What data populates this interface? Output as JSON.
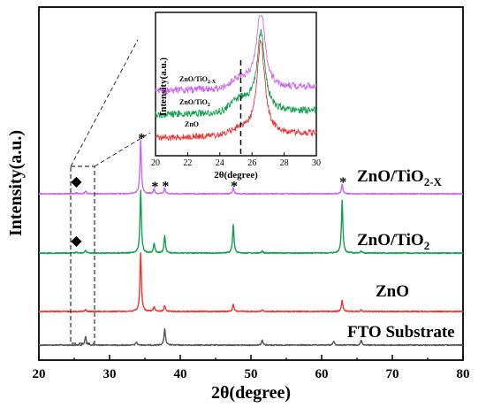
{
  "chart_data": {
    "type": "line",
    "x_axis": {
      "label": "2θ(degree)",
      "range": [
        20,
        80
      ],
      "ticks": [
        "20",
        "30",
        "40",
        "50",
        "60",
        "70",
        "80"
      ]
    },
    "y_axis": {
      "label": "Intensity(a.u.)",
      "ticks_shown": false
    },
    "grid": false,
    "series": [
      {
        "name": "FTO Substrate",
        "color": "#555555",
        "peaks": [
          [
            26.6,
            0.45
          ],
          [
            33.8,
            0.15
          ],
          [
            37.8,
            0.85
          ],
          [
            51.6,
            0.25
          ],
          [
            61.7,
            0.2
          ],
          [
            65.6,
            0.25
          ]
        ]
      },
      {
        "name": "ZnO",
        "color": "#ee3333",
        "peaks": [
          [
            26.6,
            0.08
          ],
          [
            34.4,
            3.0
          ],
          [
            36.3,
            0.25
          ],
          [
            37.8,
            0.3
          ],
          [
            47.5,
            0.35
          ],
          [
            51.6,
            0.08
          ],
          [
            62.9,
            0.6
          ],
          [
            65.6,
            0.08
          ]
        ]
      },
      {
        "name": "ZnO/TiO",
        "name_subscript": "2",
        "color": "#13a050",
        "peaks": [
          [
            25.3,
            0.05
          ],
          [
            26.6,
            0.15
          ],
          [
            34.4,
            3.2
          ],
          [
            36.3,
            0.5
          ],
          [
            37.8,
            0.9
          ],
          [
            47.5,
            1.45
          ],
          [
            51.6,
            0.1
          ],
          [
            62.9,
            2.7
          ],
          [
            65.6,
            0.1
          ]
        ]
      },
      {
        "name": "ZnO/TiO",
        "name_subscript": "2-X",
        "color": "#cc66ee",
        "peaks": [
          [
            25.3,
            0.05
          ],
          [
            26.6,
            0.15
          ],
          [
            34.4,
            2.75
          ],
          [
            36.3,
            0.25
          ],
          [
            37.8,
            0.3
          ],
          [
            47.5,
            0.3
          ],
          [
            62.9,
            0.5
          ]
        ]
      }
    ],
    "annotations": {
      "diamond": "◆",
      "star": "*",
      "diamond_positions": [
        {
          "x": 25.3,
          "series": "ZnO/TiO2-X"
        },
        {
          "x": 25.3,
          "series": "ZnO/TiO2"
        }
      ],
      "star_positions": [
        {
          "x": 34.4,
          "series": "ZnO/TiO2-X"
        },
        {
          "x": 36.3,
          "series": "ZnO/TiO2-X"
        },
        {
          "x": 37.8,
          "series": "ZnO/TiO2-X"
        },
        {
          "x": 47.5,
          "series": "ZnO/TiO2-X"
        },
        {
          "x": 62.9,
          "series": "ZnO/TiO2-X"
        }
      ],
      "zoom_box_x_range": [
        25,
        27
      ]
    },
    "inset": {
      "x_axis": {
        "label": "2θ(degree)",
        "range": [
          20,
          30
        ],
        "ticks": [
          "20",
          "22",
          "24",
          "26",
          "28",
          "30"
        ]
      },
      "y_axis": {
        "label": "Intensity(a.u.)"
      },
      "reference_line_x": 25.3,
      "series_labels": [
        {
          "name": "ZnO/TiO",
          "sub": "2-X"
        },
        {
          "name": "ZnO/TiO",
          "sub": "2"
        },
        {
          "name": "ZnO",
          "sub": ""
        }
      ]
    }
  }
}
